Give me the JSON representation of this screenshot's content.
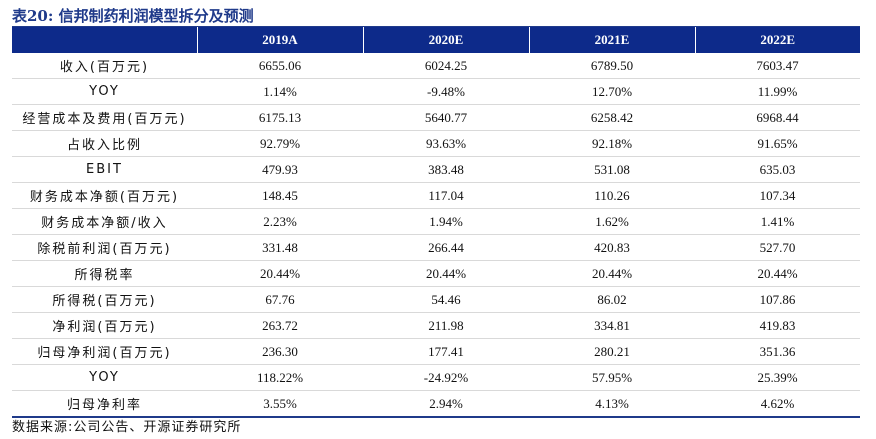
{
  "title": "表20:  信邦制药利润模型拆分及预测",
  "columns": [
    "",
    "2019A",
    "2020E",
    "2021E",
    "2022E"
  ],
  "rows": [
    {
      "label": "收入(百万元)",
      "values": [
        "6655.06",
        "6024.25",
        "6789.50",
        "7603.47"
      ]
    },
    {
      "label": "YOY",
      "values": [
        "1.14%",
        "-9.48%",
        "12.70%",
        "11.99%"
      ]
    },
    {
      "label": "经营成本及费用(百万元)",
      "values": [
        "6175.13",
        "5640.77",
        "6258.42",
        "6968.44"
      ]
    },
    {
      "label": "占收入比例",
      "values": [
        "92.79%",
        "93.63%",
        "92.18%",
        "91.65%"
      ]
    },
    {
      "label": "EBIT",
      "values": [
        "479.93",
        "383.48",
        "531.08",
        "635.03"
      ]
    },
    {
      "label": "财务成本净额(百万元)",
      "values": [
        "148.45",
        "117.04",
        "110.26",
        "107.34"
      ]
    },
    {
      "label": "财务成本净额/收入",
      "values": [
        "2.23%",
        "1.94%",
        "1.62%",
        "1.41%"
      ]
    },
    {
      "label": "除税前利润(百万元)",
      "values": [
        "331.48",
        "266.44",
        "420.83",
        "527.70"
      ]
    },
    {
      "label": "所得税率",
      "values": [
        "20.44%",
        "20.44%",
        "20.44%",
        "20.44%"
      ]
    },
    {
      "label": "所得税(百万元)",
      "values": [
        "67.76",
        "54.46",
        "86.02",
        "107.86"
      ]
    },
    {
      "label": "净利润(百万元)",
      "values": [
        "263.72",
        "211.98",
        "334.81",
        "419.83"
      ]
    },
    {
      "label": "归母净利润(百万元)",
      "values": [
        "236.30",
        "177.41",
        "280.21",
        "351.36"
      ]
    },
    {
      "label": "YOY",
      "values": [
        "118.22%",
        "-24.92%",
        "57.95%",
        "25.39%"
      ]
    },
    {
      "label": "归母净利率",
      "values": [
        "3.55%",
        "2.94%",
        "4.13%",
        "4.62%"
      ]
    }
  ],
  "source": "数据来源:公司公告、开源证券研究所",
  "colors": {
    "header_bg": "#0d2a8a",
    "title": "#1f3a8a"
  }
}
